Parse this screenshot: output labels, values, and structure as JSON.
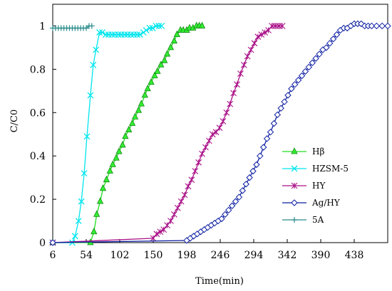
{
  "chart_data": {
    "type": "line",
    "xlabel": "Time(min)",
    "ylabel": "C/C0",
    "xlim": [
      6,
      486
    ],
    "ylim": [
      0,
      1.1
    ],
    "x_ticks": [
      6,
      54,
      102,
      150,
      198,
      246,
      294,
      342,
      390,
      438
    ],
    "y_ticks": [
      0,
      0.2,
      0.4,
      0.6,
      0.8,
      1
    ],
    "y_tick_labels": [
      "0",
      "0.2",
      "0.4",
      "0.6",
      "0.8",
      "1"
    ],
    "grid": false,
    "legend_position": "right",
    "series": [
      {
        "name": "Hβ",
        "color": "#22dd22",
        "marker": "triangle",
        "x": [
          6,
          60,
          65,
          69,
          74,
          78,
          83,
          88,
          92,
          97,
          101,
          106,
          110,
          115,
          120,
          124,
          129,
          133,
          138,
          142,
          147,
          152,
          156,
          161,
          166,
          170,
          175,
          180,
          184,
          189,
          193,
          198,
          202,
          207,
          212,
          216,
          220
        ],
        "y": [
          0,
          0,
          0.05,
          0.13,
          0.19,
          0.25,
          0.29,
          0.33,
          0.36,
          0.39,
          0.42,
          0.45,
          0.49,
          0.52,
          0.55,
          0.58,
          0.61,
          0.64,
          0.68,
          0.71,
          0.74,
          0.77,
          0.79,
          0.82,
          0.84,
          0.87,
          0.9,
          0.93,
          0.96,
          0.98,
          0.98,
          0.98,
          0.99,
          0.99,
          1.0,
          1.0,
          1.0
        ]
      },
      {
        "name": "HZSM-5",
        "color": "#00e5ee",
        "marker": "asterisk",
        "x": [
          6,
          34,
          38,
          43,
          47,
          51,
          55,
          60,
          64,
          68,
          73,
          77,
          82,
          86,
          91,
          95,
          100,
          104,
          109,
          113,
          118,
          122,
          127,
          131,
          136,
          140,
          145,
          149,
          154,
          158,
          162
        ],
        "y": [
          0,
          0,
          0.03,
          0.1,
          0.19,
          0.32,
          0.49,
          0.68,
          0.82,
          0.89,
          0.97,
          0.97,
          0.96,
          0.96,
          0.96,
          0.96,
          0.96,
          0.96,
          0.96,
          0.96,
          0.96,
          0.96,
          0.96,
          0.96,
          0.97,
          0.98,
          0.99,
          0.99,
          1.0,
          1.0,
          1.0
        ]
      },
      {
        "name": "HY",
        "color": "#aa1188",
        "marker": "star",
        "x": [
          6,
          150,
          155,
          160,
          165,
          170,
          175,
          180,
          185,
          190,
          195,
          200,
          205,
          210,
          215,
          220,
          225,
          230,
          235,
          240,
          245,
          250,
          255,
          260,
          265,
          270,
          275,
          280,
          285,
          290,
          295,
          300,
          305,
          310,
          315,
          320,
          325,
          330,
          335
        ],
        "y": [
          0,
          0.02,
          0.04,
          0.05,
          0.06,
          0.08,
          0.1,
          0.13,
          0.16,
          0.19,
          0.22,
          0.26,
          0.29,
          0.33,
          0.37,
          0.41,
          0.44,
          0.47,
          0.5,
          0.51,
          0.53,
          0.56,
          0.6,
          0.64,
          0.69,
          0.73,
          0.78,
          0.82,
          0.86,
          0.89,
          0.92,
          0.95,
          0.96,
          0.97,
          0.98,
          1.0,
          1.0,
          1.0,
          1.0
        ]
      },
      {
        "name": "Ag/HY",
        "color": "#0a1ca0",
        "marker": "diamond",
        "x": [
          6,
          198,
          203,
          208,
          213,
          218,
          223,
          228,
          233,
          238,
          243,
          248,
          253,
          258,
          263,
          268,
          273,
          278,
          283,
          288,
          293,
          298,
          303,
          308,
          313,
          318,
          323,
          328,
          333,
          338,
          343,
          348,
          353,
          358,
          363,
          368,
          373,
          378,
          383,
          388,
          393,
          398,
          403,
          408,
          413,
          418,
          423,
          428,
          433,
          438,
          443,
          448,
          453,
          458,
          463,
          470,
          478,
          486
        ],
        "y": [
          0,
          0.01,
          0.02,
          0.03,
          0.04,
          0.05,
          0.06,
          0.07,
          0.08,
          0.09,
          0.1,
          0.11,
          0.13,
          0.15,
          0.17,
          0.19,
          0.21,
          0.24,
          0.27,
          0.3,
          0.33,
          0.36,
          0.4,
          0.44,
          0.48,
          0.51,
          0.55,
          0.59,
          0.62,
          0.65,
          0.68,
          0.71,
          0.73,
          0.75,
          0.77,
          0.79,
          0.81,
          0.83,
          0.85,
          0.87,
          0.89,
          0.9,
          0.92,
          0.94,
          0.96,
          0.98,
          0.99,
          0.99,
          1.0,
          1.01,
          1.01,
          1.01,
          1.0,
          1.0,
          1.0,
          1.0,
          1.0,
          1.0
        ]
      },
      {
        "name": "5A",
        "color": "#2a8a8a",
        "marker": "plus",
        "x": [
          6,
          10,
          14,
          18,
          22,
          26,
          30,
          34,
          38,
          42,
          46,
          50,
          54,
          58,
          62
        ],
        "y": [
          0.99,
          0.99,
          0.99,
          0.99,
          0.99,
          0.99,
          0.99,
          0.99,
          0.99,
          0.99,
          0.99,
          0.99,
          0.99,
          1.0,
          1.0
        ]
      }
    ]
  }
}
